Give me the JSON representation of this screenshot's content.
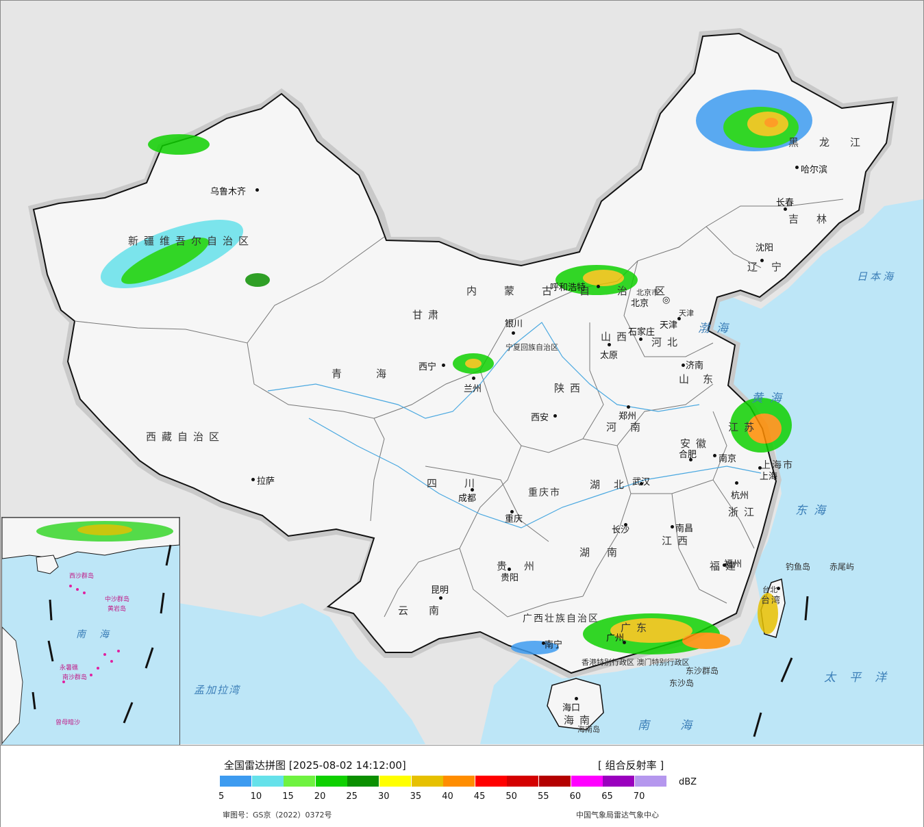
{
  "map": {
    "provinces": {
      "xinjiang": "新疆维吾尔自治区",
      "xizang": "西藏自治区",
      "qinghai": "青海",
      "gansu": "甘肃",
      "neimenggu": "内蒙古自治区",
      "heilongjiang": "黑龙江",
      "jilin": "吉林",
      "liaoning": "辽宁",
      "hebei": "河北",
      "shanxi": "山西",
      "shaanxi": "陕西",
      "henan": "河南",
      "shandong": "山东",
      "jiangsu": "江苏",
      "anhui": "安徽",
      "zhejiang": "浙江",
      "hubei": "湖北",
      "hunan": "湖南",
      "jiangxi": "江西",
      "fujian": "福建",
      "guangdong": "广东",
      "guangxi": "广西壮族自治区",
      "sichuan": "四川",
      "chongqing": "重庆市",
      "guizhou": "贵州",
      "yunnan": "云南",
      "ningxia": "宁夏回族自治区",
      "hainan": "海南",
      "taiwan": "台湾",
      "shanghai": "上海市",
      "beijing": "北京市",
      "tianjin": "天津",
      "hk_mo": "香港特别行政区 澳门特别行政区"
    },
    "cities": {
      "urumqi": "乌鲁木齐",
      "lhasa": "拉萨",
      "xining": "西宁",
      "lanzhou": "兰州",
      "yinchuan": "银川",
      "huhehaote": "呼和浩特",
      "beijing": "北京",
      "tianjin": "天津",
      "shijiazhuang": "石家庄",
      "taiyuan": "太原",
      "jinan": "济南",
      "zhengzhou": "郑州",
      "xian": "西安",
      "chengdu": "成都",
      "chongqing": "重庆",
      "guiyang": "贵阳",
      "kunming": "昆明",
      "nanning": "南宁",
      "guangzhou": "广州",
      "haikou": "海口",
      "changsha": "长沙",
      "wuhan": "武汉",
      "nanchang": "南昌",
      "fuzhou": "福州",
      "hangzhou": "杭州",
      "nanjing": "南京",
      "hefei": "合肥",
      "shanghai": "上海",
      "shenyang": "沈阳",
      "changchun": "长春",
      "haerbin": "哈尔滨",
      "taibei": "台北"
    },
    "seas": {
      "bohai": "渤海",
      "huanghai": "黄海",
      "donghai": "东海",
      "nanhai": "南海",
      "taipingyang": "太平洋",
      "ribenhai": "日本海",
      "mengjialawan": "孟加拉湾"
    },
    "islands": {
      "diaoyudao": "钓鱼岛",
      "chiweiyu": "赤尾屿",
      "dongsha": "东沙群岛",
      "dongshadao": "东沙岛",
      "hainandao": "海南岛"
    },
    "inset": {
      "title": "南海",
      "labels": [
        "西沙群岛",
        "中沙群岛",
        "黄岩岛",
        "南沙群岛",
        "永暑礁",
        "曾母暗沙"
      ]
    }
  },
  "legend": {
    "title": "全国雷达拼图 [2025-08-02 14:12:00]",
    "product": "[ 组合反射率 ]",
    "unit": "dBZ",
    "ticks": [
      "5",
      "10",
      "15",
      "20",
      "25",
      "30",
      "35",
      "40",
      "45",
      "50",
      "55",
      "60",
      "65",
      "70"
    ],
    "colors": [
      "#3d9bf0",
      "#65e1ea",
      "#6ff240",
      "#0fd000",
      "#0b8f00",
      "#ffff00",
      "#e6c000",
      "#ff8d00",
      "#ff0000",
      "#d40000",
      "#b40000",
      "#ff00ff",
      "#9a00be",
      "#b597ee"
    ],
    "review_no": "审图号：GS京（2022）0372号",
    "source": "中国气象局雷达气象中心"
  }
}
